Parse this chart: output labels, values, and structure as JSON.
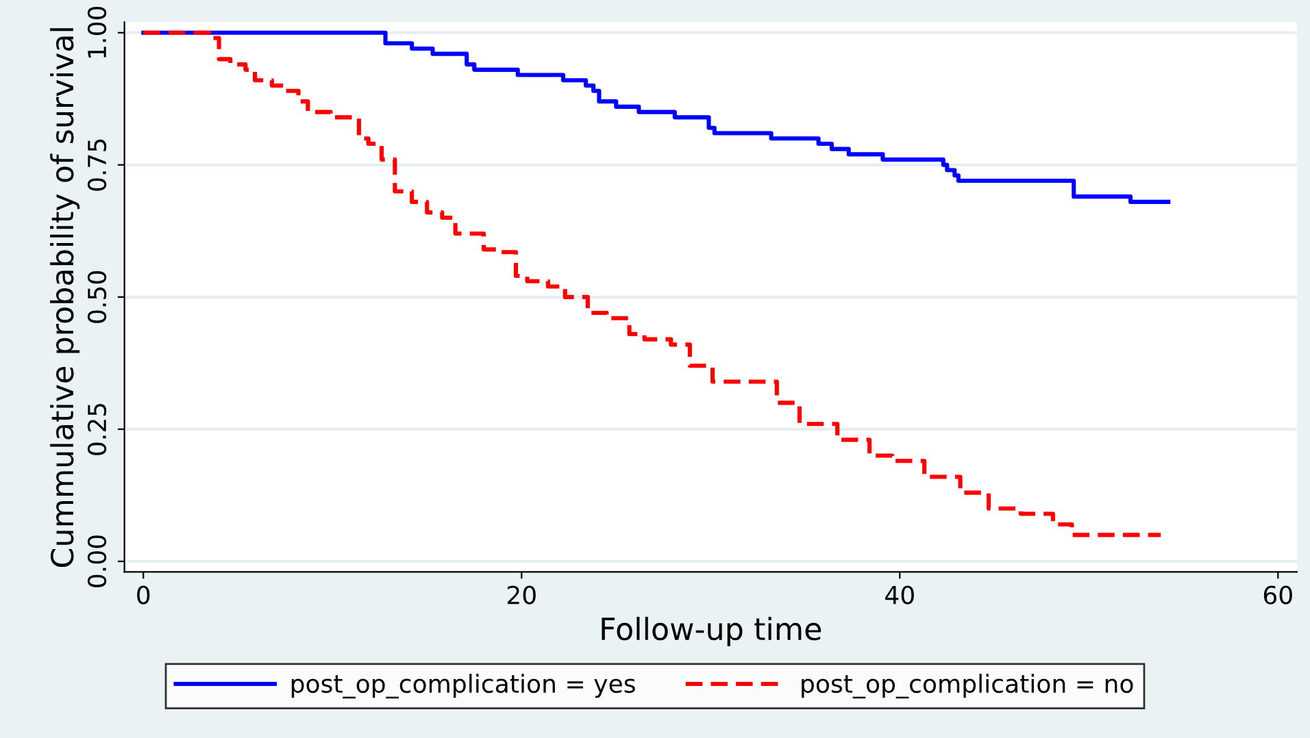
{
  "chart_data": {
    "type": "step",
    "xlabel": "Follow-up time",
    "ylabel": "Cummulative probability of survival",
    "xlim": [
      -1,
      61
    ],
    "ylim": [
      -0.02,
      1.02
    ],
    "xticks": [
      0,
      20,
      40,
      60
    ],
    "yticks": [
      {
        "value": 0,
        "label": "0.00"
      },
      {
        "value": 0.25,
        "label": "0.25"
      },
      {
        "value": 0.5,
        "label": "0.50"
      },
      {
        "value": 0.75,
        "label": "0.75"
      },
      {
        "value": 1,
        "label": "1.00"
      }
    ],
    "grid": "y",
    "legend": "bottom",
    "series": [
      {
        "name": "post_op_complication = yes",
        "color": "#0000ff",
        "line_style": "solid",
        "x": [
          0,
          12.8,
          14.2,
          15.3,
          17.1,
          17.5,
          19.8,
          22.2,
          23.4,
          23.8,
          24.1,
          25.0,
          26.2,
          28.1,
          29.9,
          30.2,
          33.2,
          35.7,
          36.4,
          37.3,
          39.1,
          42.3,
          42.5,
          42.9,
          43.1,
          49.2,
          52.2,
          54.2
        ],
        "values": [
          1.0,
          0.98,
          0.97,
          0.96,
          0.94,
          0.93,
          0.92,
          0.91,
          0.9,
          0.89,
          0.87,
          0.86,
          0.85,
          0.84,
          0.82,
          0.81,
          0.8,
          0.79,
          0.78,
          0.77,
          0.76,
          0.75,
          0.74,
          0.73,
          0.72,
          0.69,
          0.68,
          0.68
        ]
      },
      {
        "name": "post_op_complication = no",
        "color": "#ff0000",
        "line_style": "dashed",
        "x": [
          0,
          3.5,
          4.0,
          4.6,
          5.4,
          5.9,
          6.8,
          7.5,
          8.2,
          8.7,
          9.9,
          11.4,
          11.9,
          12.6,
          13.3,
          14.2,
          15.0,
          15.8,
          16.5,
          18.0,
          18.7,
          19.7,
          20.3,
          21.4,
          22.3,
          23.5,
          24.5,
          25.7,
          26.5,
          27.9,
          28.9,
          30.1,
          31.3,
          33.5,
          34.7,
          36.7,
          38.4,
          39.6,
          41.3,
          43.2,
          44.7,
          46.4,
          48.1,
          49.1,
          50.5,
          53.8
        ],
        "values": [
          1.0,
          0.99,
          0.95,
          0.94,
          0.93,
          0.91,
          0.9,
          0.89,
          0.87,
          0.85,
          0.84,
          0.8,
          0.79,
          0.76,
          0.7,
          0.68,
          0.66,
          0.65,
          0.62,
          0.59,
          0.585,
          0.54,
          0.53,
          0.52,
          0.5,
          0.47,
          0.46,
          0.43,
          0.42,
          0.41,
          0.37,
          0.34,
          0.34,
          0.3,
          0.26,
          0.23,
          0.2,
          0.19,
          0.16,
          0.13,
          0.1,
          0.09,
          0.07,
          0.05,
          0.05,
          0.05
        ]
      }
    ]
  }
}
